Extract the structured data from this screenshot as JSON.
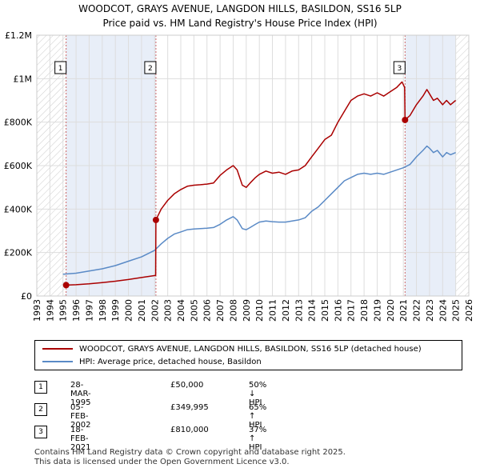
{
  "title_line1": "WOODCOT, GRAYS AVENUE, LANGDON HILLS, BASILDON, SS16 5LP",
  "title_line2": "Price paid vs. HM Land Registry's House Price Index (HPI)",
  "colors": {
    "red": "#aa0000",
    "blue": "#5a8ac6",
    "shade": "#e8eef8"
  },
  "chart_data": {
    "type": "line",
    "xlim": [
      1993,
      2026
    ],
    "ylim": [
      0,
      1200000
    ],
    "yticks": [
      0,
      200000,
      400000,
      600000,
      800000,
      1000000,
      1200000
    ],
    "ytick_labels": [
      "£0",
      "£200K",
      "£400K",
      "£600K",
      "£800K",
      "£1M",
      "£1.2M"
    ],
    "xticks": [
      1993,
      1994,
      1995,
      1996,
      1997,
      1998,
      1999,
      2000,
      2001,
      2002,
      2003,
      2004,
      2005,
      2006,
      2007,
      2008,
      2009,
      2010,
      2011,
      2012,
      2013,
      2014,
      2015,
      2016,
      2017,
      2018,
      2019,
      2020,
      2021,
      2022,
      2023,
      2024,
      2025,
      2026
    ],
    "shaded_ranges": [
      [
        1995.24,
        2002.1
      ],
      [
        2021.13,
        2025.0
      ]
    ],
    "hatched_ranges": [
      [
        1993,
        1995.24
      ],
      [
        2025.0,
        2026
      ]
    ],
    "series": [
      {
        "name": "WOODCOT, GRAYS AVENUE, LANGDON HILLS, BASILDON, SS16 5LP (detached house)",
        "color": "#aa0000",
        "x": [
          1995.24,
          1996.0,
          1997.0,
          1998.0,
          1999.0,
          2000.0,
          2001.0,
          2002.08,
          2002.1,
          2002.5,
          2003.0,
          2003.5,
          2004.0,
          2004.5,
          2005.0,
          2005.5,
          2006.0,
          2006.5,
          2007.0,
          2007.5,
          2008.0,
          2008.3,
          2008.7,
          2009.0,
          2009.3,
          2009.7,
          2010.0,
          2010.5,
          2011.0,
          2011.5,
          2012.0,
          2012.5,
          2013.0,
          2013.5,
          2014.0,
          2014.5,
          2015.0,
          2015.5,
          2016.0,
          2016.5,
          2017.0,
          2017.5,
          2018.0,
          2018.5,
          2019.0,
          2019.5,
          2020.0,
          2020.5,
          2020.9,
          2021.1,
          2021.13,
          2021.5,
          2022.0,
          2022.5,
          2022.8,
          2023.0,
          2023.3,
          2023.6,
          2024.0,
          2024.3,
          2024.6,
          2025.0
        ],
        "y": [
          50000,
          52000,
          56000,
          62000,
          68000,
          76000,
          85000,
          95000,
          349995,
          400000,
          440000,
          470000,
          490000,
          505000,
          510000,
          512000,
          515000,
          520000,
          555000,
          580000,
          600000,
          580000,
          510000,
          500000,
          520000,
          545000,
          560000,
          575000,
          565000,
          570000,
          560000,
          575000,
          580000,
          600000,
          640000,
          680000,
          720000,
          740000,
          800000,
          850000,
          900000,
          920000,
          930000,
          920000,
          935000,
          920000,
          940000,
          960000,
          985000,
          960000,
          810000,
          830000,
          880000,
          920000,
          950000,
          930000,
          900000,
          910000,
          880000,
          900000,
          880000,
          900000
        ]
      },
      {
        "name": "HPI: Average price, detached house, Basildon",
        "color": "#5a8ac6",
        "x": [
          1995.0,
          1996.0,
          1997.0,
          1998.0,
          1999.0,
          2000.0,
          2001.0,
          2002.0,
          2002.5,
          2003.0,
          2003.5,
          2004.0,
          2004.5,
          2005.0,
          2005.5,
          2006.0,
          2006.5,
          2007.0,
          2007.5,
          2008.0,
          2008.3,
          2008.7,
          2009.0,
          2009.3,
          2009.7,
          2010.0,
          2010.5,
          2011.0,
          2011.5,
          2012.0,
          2012.5,
          2013.0,
          2013.5,
          2014.0,
          2014.5,
          2015.0,
          2015.5,
          2016.0,
          2016.5,
          2017.0,
          2017.5,
          2018.0,
          2018.5,
          2019.0,
          2019.5,
          2020.0,
          2020.5,
          2021.0,
          2021.5,
          2022.0,
          2022.5,
          2022.8,
          2023.0,
          2023.3,
          2023.6,
          2024.0,
          2024.3,
          2024.6,
          2025.0
        ],
        "y": [
          100000,
          105000,
          115000,
          125000,
          140000,
          160000,
          180000,
          210000,
          240000,
          265000,
          285000,
          295000,
          305000,
          308000,
          310000,
          312000,
          315000,
          330000,
          350000,
          365000,
          350000,
          310000,
          305000,
          315000,
          330000,
          340000,
          345000,
          342000,
          340000,
          340000,
          345000,
          350000,
          360000,
          390000,
          410000,
          440000,
          470000,
          500000,
          530000,
          545000,
          560000,
          565000,
          560000,
          565000,
          560000,
          570000,
          580000,
          590000,
          605000,
          640000,
          670000,
          690000,
          680000,
          660000,
          670000,
          640000,
          660000,
          650000,
          660000
        ]
      }
    ],
    "markers": [
      {
        "label": "1",
        "x": 1995.24,
        "y": 50000
      },
      {
        "label": "2",
        "x": 2002.1,
        "y": 349995
      },
      {
        "label": "3",
        "x": 2021.13,
        "y": 810000
      }
    ]
  },
  "legend": {
    "red_label": "WOODCOT, GRAYS AVENUE, LANGDON HILLS, BASILDON, SS16 5LP (detached house)",
    "blue_label": "HPI: Average price, detached house, Basildon"
  },
  "sales": [
    {
      "num": "1",
      "date": "28-MAR-1995",
      "price": "£50,000",
      "hpi": "50% ↓ HPI"
    },
    {
      "num": "2",
      "date": "05-FEB-2002",
      "price": "£349,995",
      "hpi": "65% ↑ HPI"
    },
    {
      "num": "3",
      "date": "18-FEB-2021",
      "price": "£810,000",
      "hpi": "37% ↑ HPI"
    }
  ],
  "footer_line1": "Contains HM Land Registry data © Crown copyright and database right 2025.",
  "footer_line2": "This data is licensed under the Open Government Licence v3.0."
}
